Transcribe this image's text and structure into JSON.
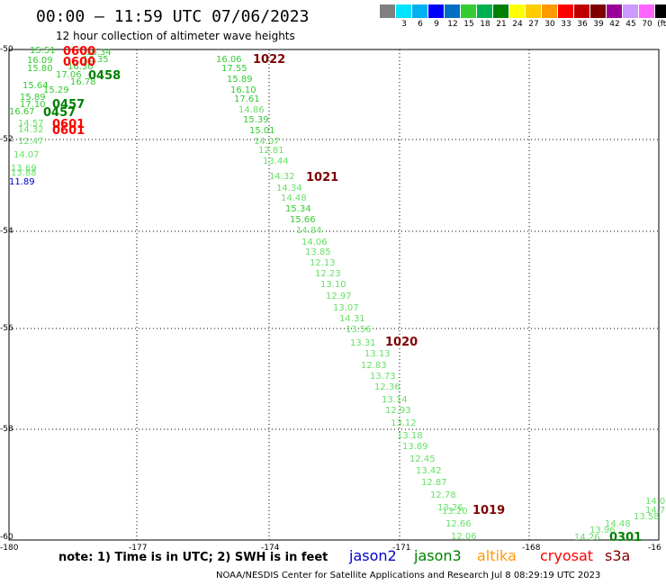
{
  "title": "00:00 – 11:59 UTC 07/06/2023",
  "subtitle": "12 hour collection of altimeter wave heights",
  "scale": {
    "colors": [
      "#808080",
      "#00e5ff",
      "#00b0f0",
      "#0000ff",
      "#0070c0",
      "#33cc33",
      "#00b050",
      "#008000",
      "#ffff00",
      "#ffcc00",
      "#ff9900",
      "#ff0000",
      "#c00000",
      "#800000",
      "#990099",
      "#cc99ff",
      "#ff66ff",
      "#000000"
    ],
    "labels": [
      "",
      "3",
      "6",
      "9",
      "12",
      "15",
      "18",
      "21",
      "24",
      "27",
      "30",
      "33",
      "36",
      "39",
      "42",
      "45",
      "70",
      "(ft)"
    ]
  },
  "lat_labels": [
    "-50",
    "-52",
    "-54",
    "-56",
    "-58",
    "-60"
  ],
  "lon_labels": [
    "-180",
    "-177",
    "-174",
    "-171",
    "-168",
    "-16"
  ],
  "note": "note: 1) Time is in UTC; 2) SWH is in feet",
  "legend": [
    {
      "name": "jason2",
      "color": "#0000cc"
    },
    {
      "name": "jason3",
      "color": "#008000"
    },
    {
      "name": "altika",
      "color": "#ff9900"
    },
    {
      "name": "cryosat",
      "color": "#ff0000"
    },
    {
      "name": "s3a",
      "color": "#800000"
    }
  ],
  "footer": "NOAA/NESDIS Center for Satellite Applications and Research    Jul  8 08:29:19 UTC 2023",
  "pass_labels": [
    {
      "text": "0600",
      "color": "#ff0000"
    },
    {
      "text": "0600",
      "color": "#ff0000"
    },
    {
      "text": "0458",
      "color": "#008000"
    },
    {
      "text": "0457",
      "color": "#008000"
    },
    {
      "text": "0457",
      "color": "#008000"
    },
    {
      "text": "0601",
      "color": "#ff0000"
    },
    {
      "text": "0601",
      "color": "#ff0000"
    },
    {
      "text": "1022",
      "color": "#800000"
    },
    {
      "text": "1021",
      "color": "#800000"
    },
    {
      "text": "1020",
      "color": "#800000"
    },
    {
      "text": "1019",
      "color": "#800000"
    },
    {
      "text": "0301",
      "color": "#008000"
    }
  ],
  "points": [
    {
      "v": "15.51",
      "c": "#33cc33"
    },
    {
      "v": "16.34",
      "c": "#33cc33"
    },
    {
      "v": "16.09",
      "c": "#33cc33"
    },
    {
      "v": "16.35",
      "c": "#33cc33"
    },
    {
      "v": "15.80",
      "c": "#33cc33"
    },
    {
      "v": "16.30",
      "c": "#33cc33"
    },
    {
      "v": "17.06",
      "c": "#33cc33"
    },
    {
      "v": "16.78",
      "c": "#33cc33"
    },
    {
      "v": "15.64",
      "c": "#33cc33"
    },
    {
      "v": "15.29",
      "c": "#33cc33"
    },
    {
      "v": "15.89",
      "c": "#33cc33"
    },
    {
      "v": "17.10",
      "c": "#33cc33"
    },
    {
      "v": "16.67",
      "c": "#33cc33"
    },
    {
      "v": "14.57",
      "c": "#66e066"
    },
    {
      "v": "14.32",
      "c": "#66e066"
    },
    {
      "v": "12.47",
      "c": "#66e066"
    },
    {
      "v": "14.07",
      "c": "#66e066"
    },
    {
      "v": "13.69",
      "c": "#66e066"
    },
    {
      "v": "13.88",
      "c": "#66e066"
    },
    {
      "v": "11.89",
      "c": "#0000cc"
    },
    {
      "v": "16.06",
      "c": "#33cc33"
    },
    {
      "v": "17.55",
      "c": "#33cc33"
    },
    {
      "v": "15.89",
      "c": "#33cc33"
    },
    {
      "v": "16.10",
      "c": "#33cc33"
    },
    {
      "v": "17.61",
      "c": "#33cc33"
    },
    {
      "v": "14.86",
      "c": "#66e066"
    },
    {
      "v": "15.39",
      "c": "#33cc33"
    },
    {
      "v": "15.01",
      "c": "#33cc33"
    },
    {
      "v": "14.07",
      "c": "#66e066"
    },
    {
      "v": "12.81",
      "c": "#66e066"
    },
    {
      "v": "13.44",
      "c": "#66e066"
    },
    {
      "v": "14.32",
      "c": "#66e066"
    },
    {
      "v": "14.34",
      "c": "#66e066"
    },
    {
      "v": "14.48",
      "c": "#66e066"
    },
    {
      "v": "15.34",
      "c": "#33cc33"
    },
    {
      "v": "15.66",
      "c": "#33cc33"
    },
    {
      "v": "14.84",
      "c": "#66e066"
    },
    {
      "v": "14.06",
      "c": "#66e066"
    },
    {
      "v": "13.85",
      "c": "#66e066"
    },
    {
      "v": "12.13",
      "c": "#66e066"
    },
    {
      "v": "12.23",
      "c": "#66e066"
    },
    {
      "v": "13.10",
      "c": "#66e066"
    },
    {
      "v": "12.97",
      "c": "#66e066"
    },
    {
      "v": "13.07",
      "c": "#66e066"
    },
    {
      "v": "14.31",
      "c": "#66e066"
    },
    {
      "v": "13.56",
      "c": "#66e066"
    },
    {
      "v": "13.31",
      "c": "#66e066"
    },
    {
      "v": "13.13",
      "c": "#66e066"
    },
    {
      "v": "12.83",
      "c": "#66e066"
    },
    {
      "v": "13.73",
      "c": "#66e066"
    },
    {
      "v": "12.36",
      "c": "#66e066"
    },
    {
      "v": "13.14",
      "c": "#66e066"
    },
    {
      "v": "12.93",
      "c": "#66e066"
    },
    {
      "v": "13.12",
      "c": "#66e066"
    },
    {
      "v": "13.18",
      "c": "#66e066"
    },
    {
      "v": "13.89",
      "c": "#66e066"
    },
    {
      "v": "12.45",
      "c": "#66e066"
    },
    {
      "v": "13.42",
      "c": "#66e066"
    },
    {
      "v": "12.87",
      "c": "#66e066"
    },
    {
      "v": "12.78",
      "c": "#66e066"
    },
    {
      "v": "13.26",
      "c": "#66e066"
    },
    {
      "v": "13.20",
      "c": "#66e066"
    },
    {
      "v": "12.66",
      "c": "#66e066"
    },
    {
      "v": "12.06",
      "c": "#66e066"
    },
    {
      "v": "14.0",
      "c": "#66e066"
    },
    {
      "v": "14.76",
      "c": "#66e066"
    },
    {
      "v": "13.58",
      "c": "#66e066"
    },
    {
      "v": "14.48",
      "c": "#66e066"
    },
    {
      "v": "13.96",
      "c": "#66e066"
    },
    {
      "v": "14.26",
      "c": "#66e066"
    }
  ]
}
